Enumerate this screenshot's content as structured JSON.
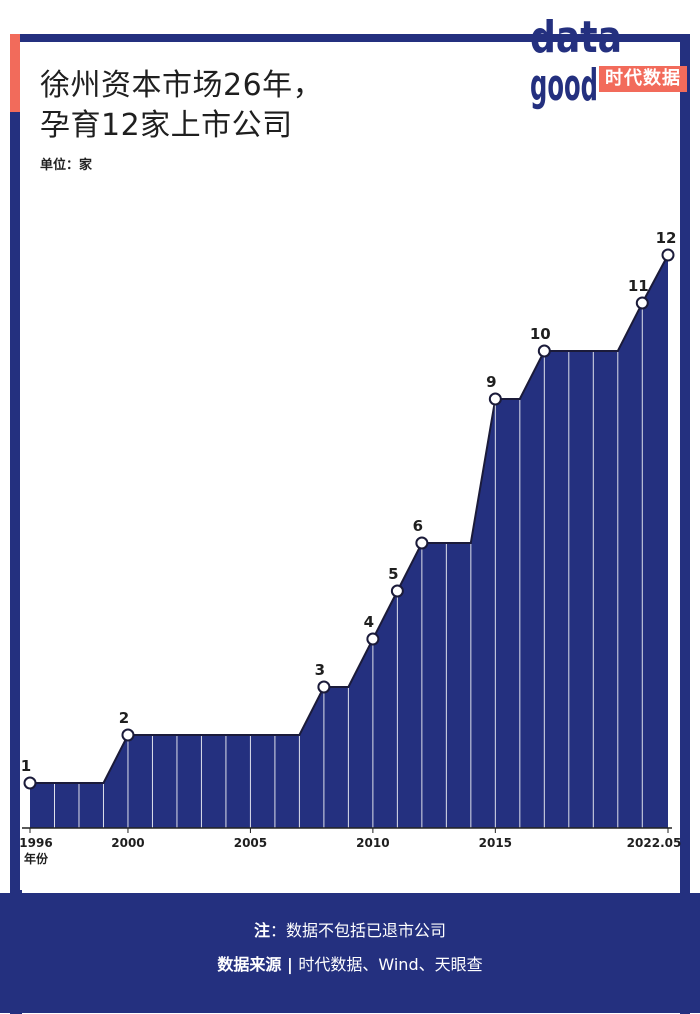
{
  "header": {
    "title_line1": "徐州资本市场26年，",
    "title_line2": "孕育12家上市公司",
    "unit": "单位：家"
  },
  "logo": {
    "text_top": "data",
    "text_bottom": "good",
    "badge": "时代数据"
  },
  "footer": {
    "note_label": "注",
    "note_sep": "：",
    "note_text": "数据不包括已退市公司",
    "source_label": "数据来源",
    "source_sep": " | ",
    "source_text": "时代数据、Wind、天眼查"
  },
  "colors": {
    "navy": "#24307f",
    "accent": "#f26b5b",
    "background": "#ffffff"
  },
  "chart_data": {
    "type": "area",
    "x": [
      1996,
      1997,
      1998,
      1999,
      2000,
      2001,
      2002,
      2003,
      2004,
      2005,
      2006,
      2007,
      2008,
      2009,
      2010,
      2011,
      2012,
      2013,
      2014,
      2015,
      2016,
      2017,
      2018,
      2019,
      2020,
      2021,
      2022.05
    ],
    "values": [
      1,
      1,
      1,
      1,
      2,
      2,
      2,
      2,
      2,
      2,
      2,
      2,
      3,
      3,
      4,
      5,
      6,
      6,
      6,
      9,
      9,
      10,
      10,
      10,
      10,
      11,
      12
    ],
    "marked_points": [
      {
        "x": 1996,
        "label": "1"
      },
      {
        "x": 2000,
        "label": "2"
      },
      {
        "x": 2008,
        "label": "3"
      },
      {
        "x": 2010,
        "label": "4"
      },
      {
        "x": 2011,
        "label": "5"
      },
      {
        "x": 2012,
        "label": "6"
      },
      {
        "x": 2015,
        "label": "9"
      },
      {
        "x": 2017,
        "label": "10"
      },
      {
        "x": 2021,
        "label": "11"
      },
      {
        "x": 2022.05,
        "label": "12"
      }
    ],
    "x_ticks": [
      {
        "x": 1996,
        "label": "1996"
      },
      {
        "x": 2000,
        "label": "2000"
      },
      {
        "x": 2005,
        "label": "2005"
      },
      {
        "x": 2010,
        "label": "2010"
      },
      {
        "x": 2015,
        "label": "2015"
      },
      {
        "x": 2022.05,
        "label": "2022.05"
      }
    ],
    "xlabel": "年份",
    "ylabel": "",
    "ylim": [
      0,
      12
    ],
    "grid": false,
    "legend": "none"
  }
}
